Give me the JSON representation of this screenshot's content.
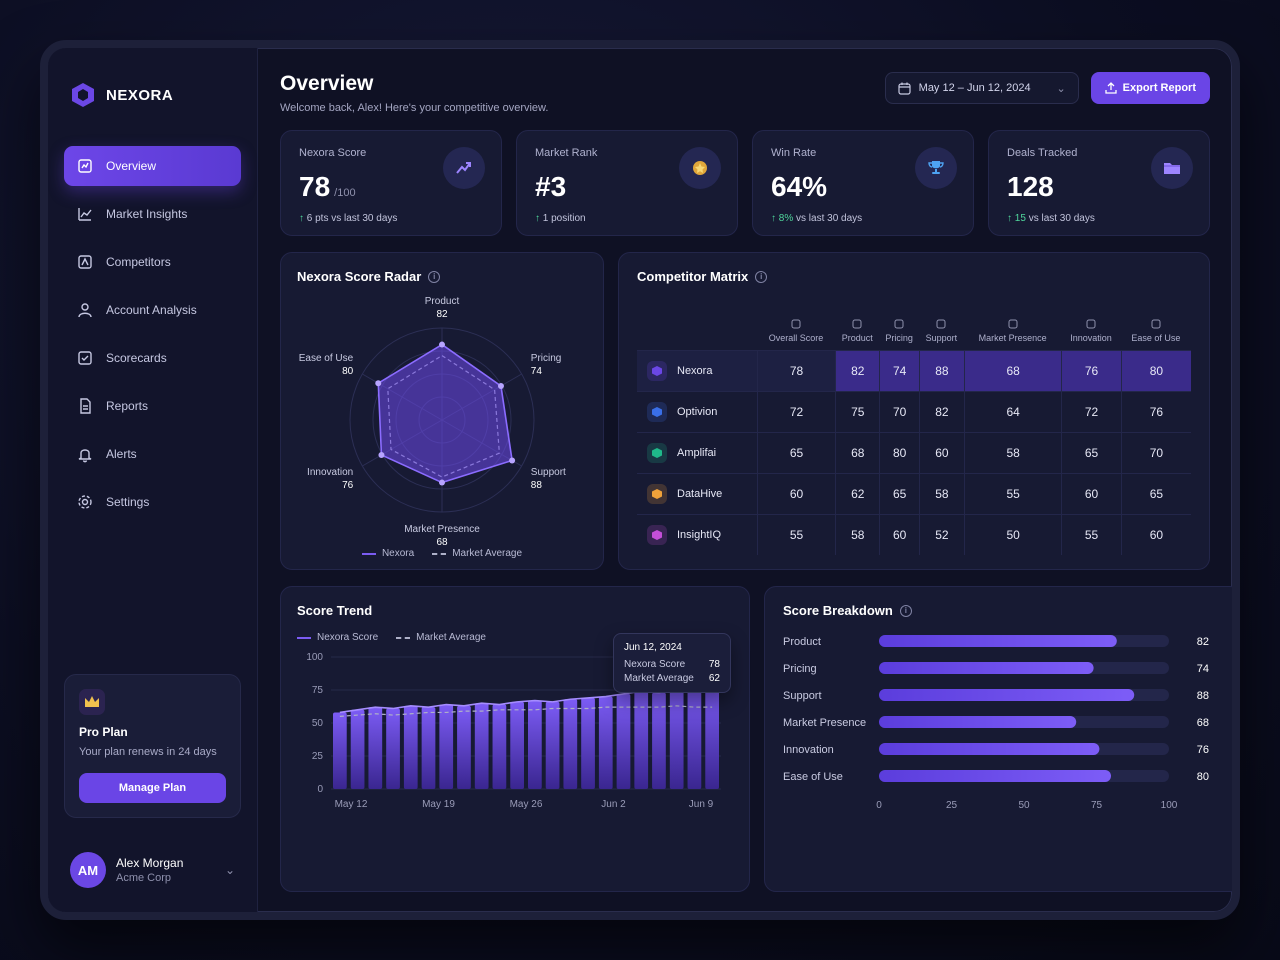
{
  "brand": {
    "name": "NEXORA"
  },
  "nav": [
    {
      "label": "Overview",
      "icon": "overview-icon",
      "active": true
    },
    {
      "label": "Market Insights",
      "icon": "market-insights-icon"
    },
    {
      "label": "Competitors",
      "icon": "competitors-icon"
    },
    {
      "label": "Account Analysis",
      "icon": "account-analysis-icon"
    },
    {
      "label": "Scorecards",
      "icon": "scorecards-icon"
    },
    {
      "label": "Reports",
      "icon": "reports-icon"
    },
    {
      "label": "Alerts",
      "icon": "bell-icon"
    },
    {
      "label": "Settings",
      "icon": "gear-icon"
    }
  ],
  "plan": {
    "title": "Pro Plan",
    "text": "Your plan renews in 24 days",
    "button": "Manage Plan"
  },
  "user": {
    "initials": "AM",
    "name": "Alex Morgan",
    "org": "Acme Corp"
  },
  "header": {
    "title": "Overview",
    "subtitle": "Welcome back, Alex! Here's your competitive overview.",
    "date_range": "May 12 – Jun 12, 2024",
    "export_label": "Export Report"
  },
  "kpis": [
    {
      "label": "Nexora Score",
      "value": "78",
      "unit": "/100",
      "arrow": "↑",
      "delta": "6 pts vs last 30 days",
      "icon": "trend-chart-icon"
    },
    {
      "label": "Market Rank",
      "value": "#3",
      "unit": "",
      "arrow": "↑",
      "delta": "1 position",
      "icon": "medal-icon"
    },
    {
      "label": "Win Rate",
      "value": "64%",
      "unit": "",
      "arrow": "↑",
      "delta_value": "8%",
      "delta": "vs last 30 days",
      "icon": "trophy-icon"
    },
    {
      "label": "Deals Tracked",
      "value": "128",
      "unit": "",
      "arrow": "↑",
      "delta_value": "15",
      "delta": "vs last 30 days",
      "icon": "folder-icon"
    }
  ],
  "radar": {
    "title": "Nexora Score Radar",
    "axes": [
      {
        "label": "Product",
        "value": 82
      },
      {
        "label": "Pricing",
        "value": 74
      },
      {
        "label": "Support",
        "value": 88
      },
      {
        "label": "Market Presence",
        "value": 68
      },
      {
        "label": "Innovation",
        "value": 76
      },
      {
        "label": "Ease of Use",
        "value": 80
      }
    ],
    "legend": [
      "Nexora",
      "Market Average"
    ]
  },
  "matrix": {
    "title": "Competitor Matrix",
    "columns": [
      "Overall Score",
      "Product",
      "Pricing",
      "Support",
      "Market Presence",
      "Innovation",
      "Ease of Use"
    ],
    "rows": [
      {
        "name": "Nexora",
        "color": "#6b47e5",
        "values": [
          78,
          82,
          74,
          88,
          68,
          76,
          80
        ]
      },
      {
        "name": "Optivion",
        "color": "#3a6fe8",
        "values": [
          72,
          75,
          70,
          82,
          64,
          72,
          76
        ]
      },
      {
        "name": "Amplifai",
        "color": "#1fb98a",
        "values": [
          65,
          68,
          80,
          60,
          58,
          65,
          70
        ]
      },
      {
        "name": "DataHive",
        "color": "#f0a23a",
        "values": [
          60,
          62,
          65,
          58,
          55,
          60,
          65
        ]
      },
      {
        "name": "InsightIQ",
        "color": "#c44fd8",
        "values": [
          55,
          58,
          60,
          52,
          50,
          55,
          60
        ]
      }
    ]
  },
  "trend": {
    "title": "Score Trend",
    "legend": [
      "Nexora Score",
      "Market Average"
    ],
    "tooltip": {
      "date": "Jun 12, 2024",
      "score_label": "Nexora Score",
      "score": "78",
      "avg_label": "Market Average",
      "avg": "62"
    }
  },
  "breakdown": {
    "title": "Score Breakdown",
    "xticks": [
      "0",
      "25",
      "50",
      "75",
      "100"
    ]
  },
  "chart_data": [
    {
      "type": "radar",
      "title": "Nexora Score Radar",
      "categories": [
        "Product",
        "Pricing",
        "Support",
        "Market Presence",
        "Innovation",
        "Ease of Use"
      ],
      "series": [
        {
          "name": "Nexora",
          "values": [
            82,
            74,
            88,
            68,
            76,
            80
          ]
        },
        {
          "name": "Market Average",
          "values": [
            70,
            66,
            72,
            62,
            64,
            68
          ]
        }
      ],
      "ylim": [
        0,
        100
      ]
    },
    {
      "type": "bar",
      "title": "Score Trend",
      "xticks": [
        "May 12",
        "May 19",
        "May 26",
        "Jun 2",
        "Jun 9"
      ],
      "yticks": [
        "0",
        "25",
        "50",
        "75",
        "100"
      ],
      "ylim": [
        0,
        100
      ],
      "series": [
        {
          "name": "Nexora Score",
          "values": [
            58,
            60,
            62,
            61,
            63,
            62,
            64,
            63,
            65,
            64,
            66,
            67,
            66,
            68,
            69,
            70,
            72,
            74,
            73,
            76,
            80,
            78
          ]
        },
        {
          "name": "Market Average",
          "values": [
            55,
            56,
            57,
            56,
            57,
            58,
            58,
            59,
            59,
            60,
            60,
            60,
            61,
            61,
            61,
            62,
            62,
            62,
            62,
            63,
            62,
            62
          ]
        }
      ]
    },
    {
      "type": "bar",
      "orientation": "horizontal",
      "title": "Score Breakdown",
      "categories": [
        "Product",
        "Pricing",
        "Support",
        "Market Presence",
        "Innovation",
        "Ease of Use"
      ],
      "values": [
        82,
        74,
        88,
        68,
        76,
        80
      ],
      "xlim": [
        0,
        100
      ]
    }
  ]
}
